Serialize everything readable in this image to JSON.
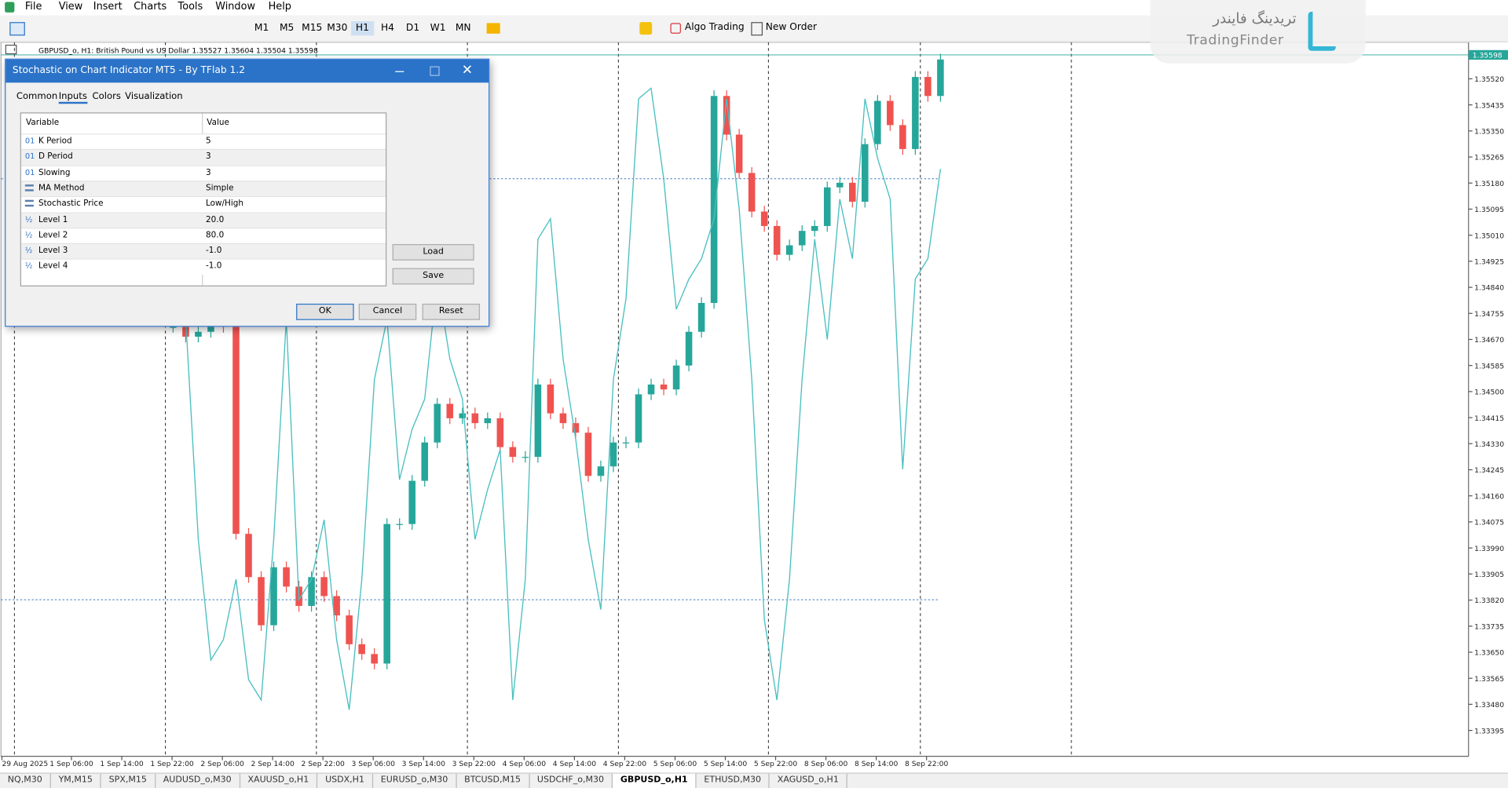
{
  "menu": [
    "File",
    "View",
    "Insert",
    "Charts",
    "Tools",
    "Window",
    "Help"
  ],
  "toolbar": {
    "timeframes": [
      "M1",
      "M5",
      "M15",
      "M30",
      "H1",
      "H4",
      "D1",
      "W1",
      "MN"
    ],
    "active_timeframe": 4,
    "algo_trading": "Algo Trading",
    "new_order": "New Order"
  },
  "chart_header": "GBPUSD_o, H1:  British Pound vs US Dollar  1.35527 1.35604 1.35504 1.35598",
  "dialog": {
    "title": "Stochastic on Chart Indicator MT5 - By TFlab 1.2",
    "tabs": [
      "Common",
      "Inputs",
      "Colors",
      "Visualization"
    ],
    "active_tab": 1,
    "columns": [
      "Variable",
      "Value"
    ],
    "rows": [
      {
        "icon": "01",
        "name": "K Period",
        "value": "5"
      },
      {
        "icon": "01",
        "name": "D Period",
        "value": "3"
      },
      {
        "icon": "01",
        "name": "Slowing",
        "value": "3"
      },
      {
        "name": "MA Method",
        "value": "Simple"
      },
      {
        "name": "Stochastic Price",
        "value": "Low/High"
      },
      {
        "icon": "½",
        "name": "Level 1",
        "value": "20.0"
      },
      {
        "icon": "½",
        "name": "Level 2",
        "value": "80.0"
      },
      {
        "icon": "½",
        "name": "Level 3",
        "value": "-1.0"
      },
      {
        "icon": "½",
        "name": "Level 4",
        "value": "-1.0"
      }
    ],
    "buttons": {
      "load": "Load",
      "save": "Save",
      "ok": "OK",
      "cancel": "Cancel",
      "reset": "Reset"
    }
  },
  "price_axis": {
    "current": "1.35598",
    "labels": [
      "1.35520",
      "1.35435",
      "1.35350",
      "1.35265",
      "1.35180",
      "1.35095",
      "1.35010",
      "1.34925",
      "1.34840",
      "1.34755",
      "1.34670",
      "1.34585",
      "1.34500",
      "1.34415",
      "1.34330",
      "1.34245",
      "1.34160",
      "1.34075",
      "1.33990",
      "1.33905",
      "1.33820",
      "1.33735",
      "1.33650",
      "1.33565",
      "1.33480",
      "1.33395"
    ]
  },
  "time_axis": [
    "29 Aug 2025",
    "1 Sep 06:00",
    "1 Sep 14:00",
    "1 Sep 22:00",
    "2 Sep 06:00",
    "2 Sep 14:00",
    "2 Sep 22:00",
    "3 Sep 06:00",
    "3 Sep 14:00",
    "3 Sep 22:00",
    "4 Sep 06:00",
    "4 Sep 14:00",
    "4 Sep 22:00",
    "5 Sep 06:00",
    "5 Sep 14:00",
    "5 Sep 22:00",
    "8 Sep 06:00",
    "8 Sep 14:00",
    "8 Sep 22:00"
  ],
  "price_closes": [
    1.34711,
    1.34679,
    1.34695,
    1.34742,
    1.34711,
    1.34036,
    1.33895,
    1.33738,
    1.33927,
    1.33864,
    1.33801,
    1.33895,
    1.33833,
    1.3377,
    1.33676,
    1.33644,
    1.33613,
    1.34068,
    1.34068,
    1.34209,
    1.34334,
    1.3446,
    1.34413,
    1.34429,
    1.34397,
    1.34413,
    1.34319,
    1.34287,
    1.34287,
    1.34523,
    1.34429,
    1.34397,
    1.34366,
    1.34225,
    1.34256,
    1.34334,
    1.34334,
    1.34491,
    1.34523,
    1.34507,
    1.34585,
    1.34695,
    1.34789,
    1.35464,
    1.35338,
    1.35213,
    1.35087,
    1.3504,
    1.34946,
    1.34977,
    1.35024,
    1.3504,
    1.35166,
    1.35181,
    1.35119,
    1.35307,
    1.35448,
    1.35369,
    1.35291,
    1.35526,
    1.35464,
    1.35583
  ],
  "stochastic_k": [
    60,
    60,
    28.6,
    11.4,
    14.3,
    22.9,
    8.6,
    5.7,
    28.6,
    60,
    20,
    22.9,
    31.4,
    14.3,
    4.3,
    22.9,
    51.4,
    60,
    37.1,
    44.3,
    48.6,
    65.7,
    54.3,
    48.6,
    28.6,
    35.7,
    41.4,
    5.7,
    22.9,
    71.4,
    74.3,
    54.3,
    42.9,
    28.6,
    18.6,
    51.4,
    62.9,
    91.4,
    92.9,
    80,
    61.4,
    65.7,
    68.6,
    74.3,
    91.4,
    75.7,
    51.4,
    17.1,
    5.7,
    22.9,
    51.4,
    71.4,
    57.1,
    77.1,
    68.6,
    91.4,
    82.9,
    77.1,
    38.6,
    65.7,
    68.6,
    81.4
  ],
  "tabs": [
    "NQ,M30",
    "YM,M15",
    "SPX,M15",
    "AUDUSD_o,M30",
    "XAUUSD_o,H1",
    "USDX,H1",
    "EURUSD_o,M30",
    "BTCUSD,M15",
    "USDCHF_o,M30",
    "GBPUSD_o,H1",
    "ETHUSD,M30",
    "XAGUSD_o,H1"
  ],
  "active_chart_tab": 9,
  "logo": {
    "persian": "تریدینگ فایندر",
    "latin": "TradingFinder"
  }
}
